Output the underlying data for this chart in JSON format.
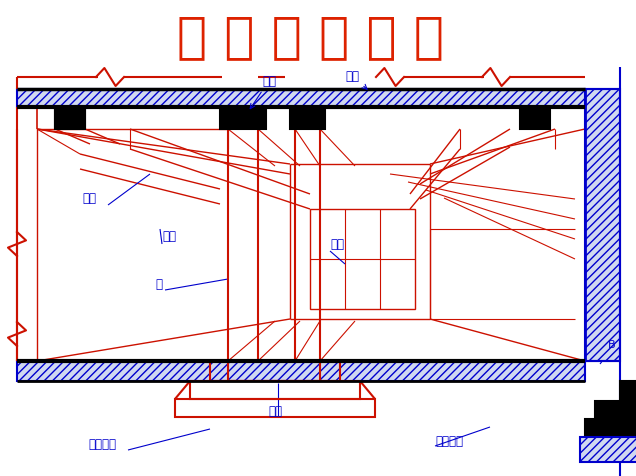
{
  "title": "柱 平 法 施 工 图",
  "title_color": "#dd2200",
  "title_fontsize": 36,
  "bg_color": "#ffffff",
  "red": "#cc1100",
  "blue": "#0000cc",
  "black": "#000000",
  "lbl_zhuji_top": "主梁",
  "lbl_louban": "楼板",
  "lbl_ciji_left": "次梁",
  "lbl_zhuji_left": "主梁",
  "lbl_zhu": "柱",
  "lbl_ciji_right": "次梁",
  "lbl_duli": "独立基础",
  "lbl_dimian": "地面",
  "lbl_tiaoxing": "条形基础",
  "lbl_B": "B"
}
